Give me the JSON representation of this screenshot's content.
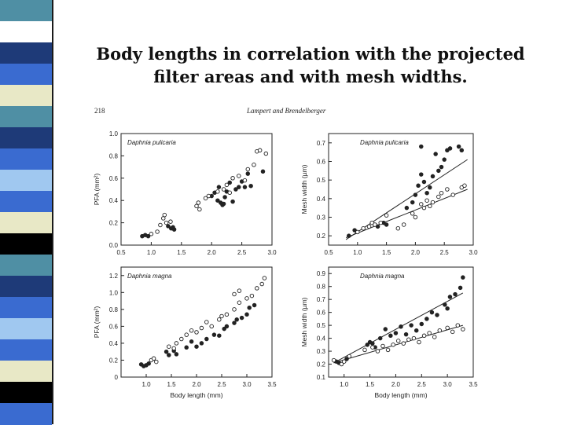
{
  "slide": {
    "title_line1": "Body lengths in correlation with the projected",
    "title_line2": "filter areas and with mesh widths."
  },
  "figure_header": {
    "page_number": "218",
    "authors": "Lampert and Brendelberger"
  },
  "colors": {
    "stripe": [
      "#4f8fa4",
      "#ffffff",
      "#1e3a78",
      "#3a6bd0",
      "#e8e8c6",
      "#4f8fa4",
      "#1e3a78",
      "#3a6bd0",
      "#a0c8f0",
      "#3a6bd0",
      "#e8e8c6",
      "#000000",
      "#4f8fa4",
      "#1e3a78",
      "#3a6bd0",
      "#a0c8f0",
      "#3a6bd0",
      "#e8e8c6",
      "#000000",
      "#3a6bd0"
    ],
    "ink": "#222222"
  },
  "chart_data": [
    {
      "type": "scatter",
      "panel_label": "Daphnia pulicaria",
      "xlabel": "",
      "ylabel": "PFA (mm²)",
      "xlim": [
        0.5,
        3.0
      ],
      "ylim": [
        0.0,
        1.0
      ],
      "xticks": [
        "0.5",
        "1.0",
        "1.5",
        "2.0",
        "2.5",
        "3.0"
      ],
      "yticks": [
        "0.0",
        "0.2",
        "0.4",
        "0.6",
        "0.8",
        "1.0"
      ],
      "series": [
        {
          "marker": "filled",
          "points": [
            [
              0.85,
              0.08
            ],
            [
              0.9,
              0.09
            ],
            [
              0.95,
              0.08
            ],
            [
              1.28,
              0.17
            ],
            [
              1.33,
              0.15
            ],
            [
              1.36,
              0.16
            ],
            [
              1.38,
              0.14
            ],
            [
              2.0,
              0.44
            ],
            [
              2.05,
              0.47
            ],
            [
              2.1,
              0.4
            ],
            [
              2.12,
              0.52
            ],
            [
              2.15,
              0.38
            ],
            [
              2.18,
              0.36
            ],
            [
              2.2,
              0.37
            ],
            [
              2.22,
              0.43
            ],
            [
              2.25,
              0.48
            ],
            [
              2.3,
              0.56
            ],
            [
              2.35,
              0.39
            ],
            [
              2.4,
              0.5
            ],
            [
              2.45,
              0.52
            ],
            [
              2.5,
              0.57
            ],
            [
              2.55,
              0.52
            ],
            [
              2.6,
              0.64
            ],
            [
              2.65,
              0.53
            ],
            [
              2.85,
              0.66
            ]
          ]
        },
        {
          "marker": "open",
          "points": [
            [
              1.0,
              0.1
            ],
            [
              1.1,
              0.12
            ],
            [
              1.15,
              0.18
            ],
            [
              1.2,
              0.24
            ],
            [
              1.22,
              0.27
            ],
            [
              1.25,
              0.2
            ],
            [
              1.32,
              0.21
            ],
            [
              1.75,
              0.35
            ],
            [
              1.78,
              0.38
            ],
            [
              1.8,
              0.32
            ],
            [
              1.9,
              0.42
            ],
            [
              1.95,
              0.44
            ],
            [
              2.1,
              0.48
            ],
            [
              2.2,
              0.5
            ],
            [
              2.25,
              0.54
            ],
            [
              2.3,
              0.47
            ],
            [
              2.35,
              0.6
            ],
            [
              2.45,
              0.62
            ],
            [
              2.55,
              0.58
            ],
            [
              2.6,
              0.68
            ],
            [
              2.7,
              0.72
            ],
            [
              2.75,
              0.84
            ],
            [
              2.8,
              0.85
            ],
            [
              2.9,
              0.82
            ]
          ]
        }
      ]
    },
    {
      "type": "scatter",
      "panel_label": "Daphnia pulicaria",
      "xlabel": "",
      "ylabel": "Mesh width (µm)",
      "xlim": [
        0.5,
        3.0
      ],
      "ylim": [
        0.15,
        0.75
      ],
      "xticks": [
        "0.5",
        "1.0",
        "1.5",
        "2.0",
        "2.5",
        "3.0"
      ],
      "yticks": [
        "0.2",
        "0.3",
        "0.4",
        "0.5",
        "0.6",
        "0.7"
      ],
      "series": [
        {
          "marker": "filled",
          "name": "",
          "points": [
            [
              0.85,
              0.2
            ],
            [
              0.95,
              0.23
            ],
            [
              1.3,
              0.26
            ],
            [
              1.35,
              0.25
            ],
            [
              1.45,
              0.27
            ],
            [
              1.5,
              0.26
            ],
            [
              1.85,
              0.35
            ],
            [
              1.95,
              0.38
            ],
            [
              2.0,
              0.42
            ],
            [
              2.05,
              0.47
            ],
            [
              2.1,
              0.53
            ],
            [
              2.15,
              0.49
            ],
            [
              2.2,
              0.43
            ],
            [
              2.25,
              0.46
            ],
            [
              2.3,
              0.52
            ],
            [
              2.4,
              0.55
            ],
            [
              2.45,
              0.57
            ],
            [
              2.5,
              0.61
            ],
            [
              2.55,
              0.66
            ],
            [
              2.6,
              0.67
            ],
            [
              2.75,
              0.68
            ],
            [
              2.8,
              0.66
            ],
            [
              2.1,
              0.68
            ],
            [
              2.35,
              0.64
            ]
          ]
        },
        {
          "marker": "open",
          "name": "",
          "points": [
            [
              1.0,
              0.22
            ],
            [
              1.1,
              0.24
            ],
            [
              1.2,
              0.25
            ],
            [
              1.25,
              0.27
            ],
            [
              1.3,
              0.26
            ],
            [
              1.4,
              0.27
            ],
            [
              1.5,
              0.31
            ],
            [
              1.7,
              0.24
            ],
            [
              1.8,
              0.26
            ],
            [
              1.95,
              0.32
            ],
            [
              2.0,
              0.3
            ],
            [
              2.1,
              0.37
            ],
            [
              2.15,
              0.35
            ],
            [
              2.2,
              0.39
            ],
            [
              2.25,
              0.36
            ],
            [
              2.3,
              0.38
            ],
            [
              2.4,
              0.41
            ],
            [
              2.45,
              0.43
            ],
            [
              2.55,
              0.45
            ],
            [
              2.65,
              0.42
            ],
            [
              2.8,
              0.46
            ],
            [
              2.85,
              0.47
            ]
          ]
        }
      ],
      "fit_lines": [
        [
          [
            0.8,
            0.18
          ],
          [
            2.9,
            0.61
          ]
        ],
        [
          [
            0.8,
            0.19
          ],
          [
            2.9,
            0.45
          ]
        ]
      ]
    },
    {
      "type": "scatter",
      "panel_label": "Daphnia magna",
      "xlabel": "",
      "ylabel": "PFA (mm²)",
      "xlim": [
        0.5,
        3.5
      ],
      "ylim": [
        0.0,
        1.3
      ],
      "xticks": [
        "1.0",
        "1.5",
        "2.0",
        "2.5",
        "3.0",
        "3.5"
      ],
      "yticks": [
        "0",
        "0.2",
        "0.4",
        "0.6",
        "0.8",
        "1.0",
        "1.2"
      ],
      "series": [
        {
          "marker": "filled",
          "points": [
            [
              0.9,
              0.15
            ],
            [
              0.95,
              0.13
            ],
            [
              1.0,
              0.14
            ],
            [
              1.05,
              0.16
            ],
            [
              1.4,
              0.3
            ],
            [
              1.45,
              0.26
            ],
            [
              1.55,
              0.31
            ],
            [
              1.6,
              0.27
            ],
            [
              1.8,
              0.35
            ],
            [
              1.9,
              0.42
            ],
            [
              2.0,
              0.36
            ],
            [
              2.1,
              0.4
            ],
            [
              2.2,
              0.45
            ],
            [
              2.35,
              0.5
            ],
            [
              2.45,
              0.49
            ],
            [
              2.55,
              0.57
            ],
            [
              2.6,
              0.6
            ],
            [
              2.75,
              0.64
            ],
            [
              2.9,
              0.7
            ],
            [
              3.0,
              0.74
            ],
            [
              3.05,
              0.82
            ],
            [
              3.15,
              0.85
            ],
            [
              2.8,
              0.68
            ]
          ]
        },
        {
          "marker": "open",
          "points": [
            [
              1.1,
              0.2
            ],
            [
              1.15,
              0.22
            ],
            [
              1.2,
              0.18
            ],
            [
              1.45,
              0.36
            ],
            [
              1.55,
              0.34
            ],
            [
              1.6,
              0.4
            ],
            [
              1.7,
              0.45
            ],
            [
              1.8,
              0.5
            ],
            [
              1.9,
              0.55
            ],
            [
              2.0,
              0.53
            ],
            [
              2.1,
              0.58
            ],
            [
              2.2,
              0.65
            ],
            [
              2.3,
              0.6
            ],
            [
              2.45,
              0.68
            ],
            [
              2.5,
              0.72
            ],
            [
              2.6,
              0.74
            ],
            [
              2.75,
              0.8
            ],
            [
              2.85,
              0.88
            ],
            [
              3.0,
              0.93
            ],
            [
              3.1,
              0.96
            ],
            [
              3.2,
              1.05
            ],
            [
              3.3,
              1.1
            ],
            [
              3.35,
              1.17
            ],
            [
              2.75,
              0.98
            ],
            [
              2.85,
              1.02
            ]
          ]
        }
      ]
    },
    {
      "type": "scatter",
      "panel_label": "Daphnia magna",
      "xlabel": "Body length (mm)",
      "ylabel": "Mesh width (µm)",
      "xlim": [
        0.7,
        3.5
      ],
      "ylim": [
        0.1,
        0.95
      ],
      "xticks": [
        "1.0",
        "1.5",
        "2.0",
        "2.5",
        "3.0",
        "3.5"
      ],
      "yticks": [
        "0.1",
        "0.2",
        "0.3",
        "0.4",
        "0.5",
        "0.6",
        "0.7",
        "0.8",
        "0.9"
      ],
      "series": [
        {
          "marker": "filled",
          "name": "",
          "points": [
            [
              0.85,
              0.22
            ],
            [
              0.9,
              0.21
            ],
            [
              1.05,
              0.24
            ],
            [
              1.45,
              0.35
            ],
            [
              1.5,
              0.37
            ],
            [
              1.55,
              0.36
            ],
            [
              1.6,
              0.33
            ],
            [
              1.7,
              0.4
            ],
            [
              1.8,
              0.47
            ],
            [
              1.9,
              0.42
            ],
            [
              2.0,
              0.44
            ],
            [
              2.1,
              0.49
            ],
            [
              2.2,
              0.43
            ],
            [
              2.3,
              0.5
            ],
            [
              2.4,
              0.46
            ],
            [
              2.5,
              0.51
            ],
            [
              2.6,
              0.55
            ],
            [
              2.7,
              0.6
            ],
            [
              2.8,
              0.58
            ],
            [
              2.95,
              0.66
            ],
            [
              3.05,
              0.72
            ],
            [
              3.15,
              0.74
            ],
            [
              3.25,
              0.79
            ],
            [
              3.3,
              0.87
            ],
            [
              3.0,
              0.63
            ]
          ]
        },
        {
          "marker": "open",
          "name": "",
          "points": [
            [
              0.8,
              0.23
            ],
            [
              0.95,
              0.2
            ],
            [
              1.0,
              0.22
            ],
            [
              1.1,
              0.26
            ],
            [
              1.4,
              0.31
            ],
            [
              1.55,
              0.33
            ],
            [
              1.65,
              0.3
            ],
            [
              1.75,
              0.34
            ],
            [
              1.85,
              0.31
            ],
            [
              1.95,
              0.35
            ],
            [
              2.05,
              0.38
            ],
            [
              2.15,
              0.36
            ],
            [
              2.25,
              0.39
            ],
            [
              2.35,
              0.4
            ],
            [
              2.45,
              0.37
            ],
            [
              2.55,
              0.42
            ],
            [
              2.65,
              0.44
            ],
            [
              2.75,
              0.41
            ],
            [
              2.85,
              0.46
            ],
            [
              3.0,
              0.48
            ],
            [
              3.1,
              0.45
            ],
            [
              3.2,
              0.5
            ],
            [
              3.3,
              0.47
            ]
          ]
        }
      ],
      "fit_lines": [
        [
          [
            0.8,
            0.21
          ],
          [
            3.3,
            0.75
          ]
        ],
        [
          [
            0.8,
            0.21
          ],
          [
            3.3,
            0.5
          ]
        ]
      ]
    }
  ]
}
